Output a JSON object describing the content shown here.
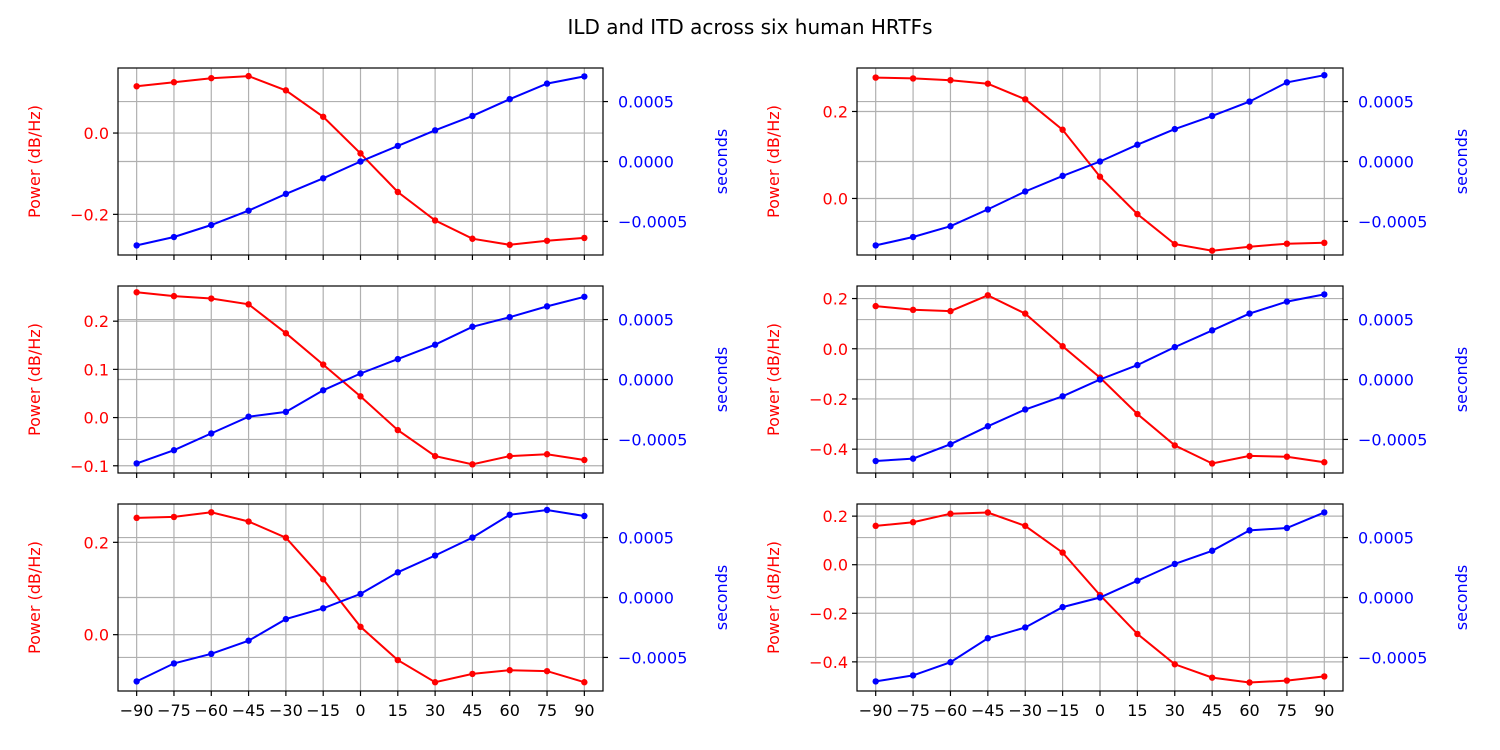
{
  "figure": {
    "title": "ILD and ITD across six human HRTFs"
  },
  "colors": {
    "ild": "#ff0000",
    "itd": "#0000ff",
    "grid": "#b0b0b0",
    "frame": "#000000"
  },
  "chart_data": [
    {
      "type": "line",
      "x": [
        -90,
        -75,
        -60,
        -45,
        -30,
        -15,
        0,
        15,
        30,
        45,
        60,
        75,
        90
      ],
      "ylabel_left": "Power (dB/Hz)",
      "ylabel_right": "seconds",
      "ylim_left": [
        -0.3,
        0.16
      ],
      "ylim_right": [
        -0.00078,
        0.00078
      ],
      "yticks_left": [
        -0.2,
        0.0
      ],
      "yticks_right": [
        -0.0005,
        0.0,
        0.0005
      ],
      "series": [
        {
          "axis": "left",
          "color": "#ff0000",
          "values": [
            0.115,
            0.125,
            0.135,
            0.14,
            0.105,
            0.04,
            -0.05,
            -0.145,
            -0.215,
            -0.26,
            -0.275,
            -0.265,
            -0.258
          ]
        },
        {
          "axis": "right",
          "color": "#0000ff",
          "values": [
            -0.0007,
            -0.00063,
            -0.00053,
            -0.00041,
            -0.00027,
            -0.00014,
            0.0,
            0.00013,
            0.00026,
            0.00038,
            0.00052,
            0.00065,
            0.00071
          ]
        }
      ],
      "grid": true
    },
    {
      "type": "line",
      "x": [
        -90,
        -75,
        -60,
        -45,
        -30,
        -15,
        0,
        15,
        30,
        45,
        60,
        75,
        90
      ],
      "ylabel_left": "Power (dB/Hz)",
      "ylabel_right": "seconds",
      "ylim_left": [
        -0.13,
        0.3
      ],
      "ylim_right": [
        -0.00078,
        0.00078
      ],
      "yticks_left": [
        0.0,
        0.2
      ],
      "yticks_right": [
        -0.0005,
        0.0,
        0.0005
      ],
      "series": [
        {
          "axis": "left",
          "color": "#ff0000",
          "values": [
            0.278,
            0.276,
            0.272,
            0.264,
            0.228,
            0.158,
            0.05,
            -0.036,
            -0.105,
            -0.12,
            -0.111,
            -0.104,
            -0.102
          ]
        },
        {
          "axis": "right",
          "color": "#0000ff",
          "values": [
            -0.0007,
            -0.00063,
            -0.00054,
            -0.0004,
            -0.00025,
            -0.00012,
            0.0,
            0.00014,
            0.00027,
            0.00038,
            0.0005,
            0.00066,
            0.00072
          ]
        }
      ],
      "grid": true
    },
    {
      "type": "line",
      "x": [
        -90,
        -75,
        -60,
        -45,
        -30,
        -15,
        0,
        15,
        30,
        45,
        60,
        75,
        90
      ],
      "ylabel_left": "Power (dB/Hz)",
      "ylabel_right": "seconds",
      "ylim_left": [
        -0.115,
        0.273
      ],
      "ylim_right": [
        -0.00078,
        0.00078
      ],
      "yticks_left": [
        -0.1,
        0.0,
        0.1,
        0.2
      ],
      "yticks_right": [
        -0.0005,
        0.0,
        0.0005
      ],
      "series": [
        {
          "axis": "left",
          "color": "#ff0000",
          "values": [
            0.26,
            0.252,
            0.247,
            0.235,
            0.175,
            0.11,
            0.044,
            -0.026,
            -0.08,
            -0.097,
            -0.08,
            -0.076,
            -0.088
          ]
        },
        {
          "axis": "right",
          "color": "#0000ff",
          "values": [
            -0.0007,
            -0.00059,
            -0.00045,
            -0.00031,
            -0.00027,
            -9e-05,
            5e-05,
            0.00017,
            0.00029,
            0.00044,
            0.00052,
            0.00061,
            0.00069
          ]
        }
      ],
      "grid": true
    },
    {
      "type": "line",
      "x": [
        -90,
        -75,
        -60,
        -45,
        -30,
        -15,
        0,
        15,
        30,
        45,
        60,
        75,
        90
      ],
      "ylabel_left": "Power (dB/Hz)",
      "ylabel_right": "seconds",
      "ylim_left": [
        -0.495,
        0.25
      ],
      "ylim_right": [
        -0.00078,
        0.00078
      ],
      "yticks_left": [
        -0.4,
        -0.2,
        0.0,
        0.2
      ],
      "yticks_right": [
        -0.0005,
        0.0,
        0.0005
      ],
      "series": [
        {
          "axis": "left",
          "color": "#ff0000",
          "values": [
            0.17,
            0.155,
            0.15,
            0.213,
            0.14,
            0.01,
            -0.115,
            -0.26,
            -0.385,
            -0.457,
            -0.427,
            -0.43,
            -0.452
          ]
        },
        {
          "axis": "right",
          "color": "#0000ff",
          "values": [
            -0.00068,
            -0.00066,
            -0.00054,
            -0.00039,
            -0.00025,
            -0.00014,
            0.0,
            0.00012,
            0.00027,
            0.00041,
            0.00055,
            0.00065,
            0.00071
          ]
        }
      ],
      "grid": true
    },
    {
      "type": "line",
      "x": [
        -90,
        -75,
        -60,
        -45,
        -30,
        -15,
        0,
        15,
        30,
        45,
        60,
        75,
        90
      ],
      "ylabel_left": "Power (dB/Hz)",
      "ylabel_right": "seconds",
      "ylim_left": [
        -0.122,
        0.283
      ],
      "ylim_right": [
        -0.00078,
        0.00078
      ],
      "yticks_left": [
        0.0,
        0.2
      ],
      "yticks_right": [
        -0.0005,
        0.0,
        0.0005
      ],
      "series": [
        {
          "axis": "left",
          "color": "#ff0000",
          "values": [
            0.253,
            0.255,
            0.265,
            0.245,
            0.21,
            0.12,
            0.017,
            -0.055,
            -0.103,
            -0.085,
            -0.077,
            -0.079,
            -0.103
          ]
        },
        {
          "axis": "right",
          "color": "#0000ff",
          "values": [
            -0.0007,
            -0.00055,
            -0.00047,
            -0.00036,
            -0.00018,
            -9e-05,
            3e-05,
            0.00021,
            0.00035,
            0.0005,
            0.00069,
            0.00073,
            0.00068
          ]
        }
      ],
      "grid": true
    },
    {
      "type": "line",
      "x": [
        -90,
        -75,
        -60,
        -45,
        -30,
        -15,
        0,
        15,
        30,
        45,
        60,
        75,
        90
      ],
      "ylabel_left": "Power (dB/Hz)",
      "ylabel_right": "seconds",
      "ylim_left": [
        -0.52,
        0.25
      ],
      "ylim_right": [
        -0.00078,
        0.00078
      ],
      "yticks_left": [
        -0.4,
        -0.2,
        0.0,
        0.2
      ],
      "yticks_right": [
        -0.0005,
        0.0,
        0.0005
      ],
      "series": [
        {
          "axis": "left",
          "color": "#ff0000",
          "values": [
            0.16,
            0.175,
            0.21,
            0.215,
            0.16,
            0.05,
            -0.125,
            -0.285,
            -0.41,
            -0.465,
            -0.485,
            -0.477,
            -0.46
          ]
        },
        {
          "axis": "right",
          "color": "#0000ff",
          "values": [
            -0.0007,
            -0.00065,
            -0.00054,
            -0.00034,
            -0.00025,
            -8e-05,
            0.0,
            0.00014,
            0.00028,
            0.00039,
            0.00056,
            0.00058,
            0.00071
          ]
        }
      ],
      "grid": true
    }
  ]
}
